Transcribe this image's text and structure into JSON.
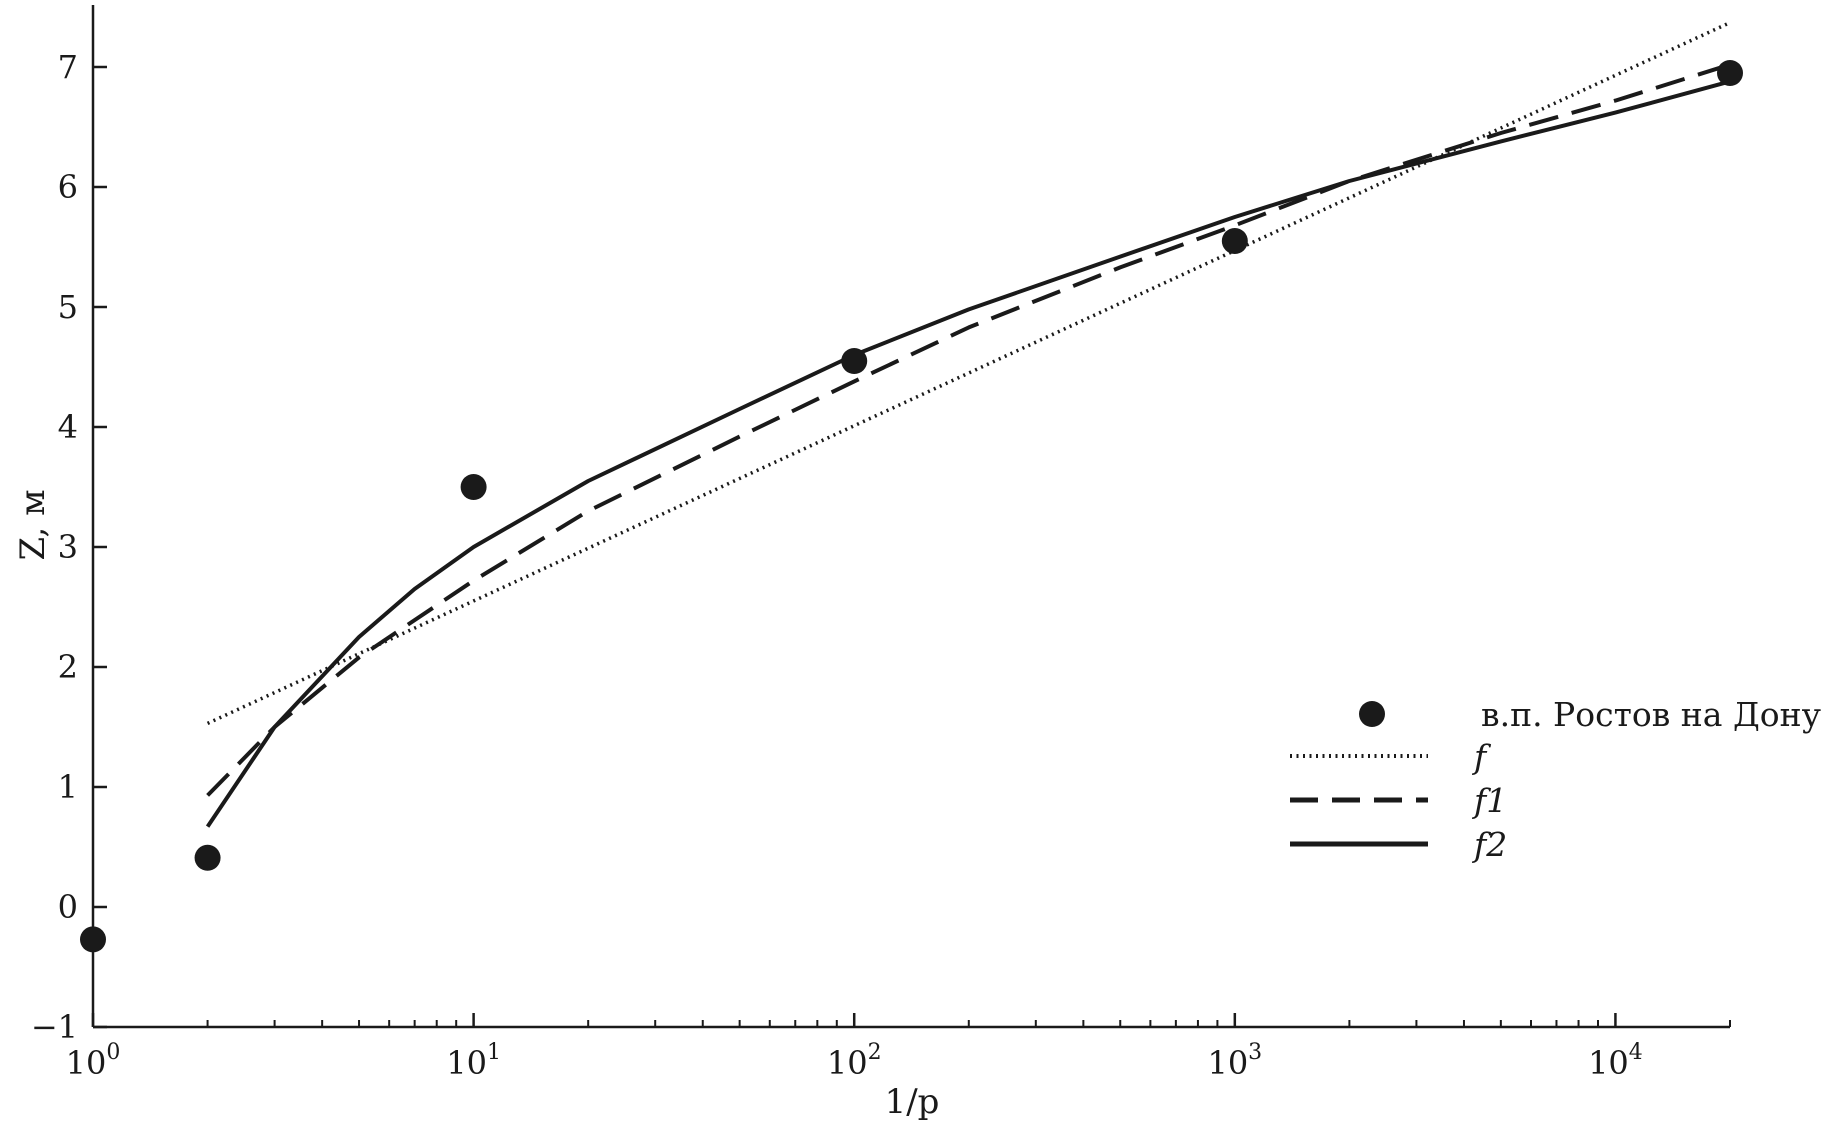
{
  "chart_data": {
    "type": "line",
    "title": "",
    "xlabel": "1/p",
    "ylabel": "Z, м",
    "x_scale": "log",
    "xlim": [
      1,
      20000
    ],
    "ylim": [
      -1,
      7.5
    ],
    "x_ticks": [
      {
        "value": 1,
        "base": "10",
        "exp": "0"
      },
      {
        "value": 10,
        "base": "10",
        "exp": "1"
      },
      {
        "value": 100,
        "base": "10",
        "exp": "2"
      },
      {
        "value": 1000,
        "base": "10",
        "exp": "3"
      },
      {
        "value": 10000,
        "base": "10",
        "exp": "4"
      }
    ],
    "y_ticks": [
      {
        "value": -1,
        "label": "−1"
      },
      {
        "value": 0,
        "label": "0"
      },
      {
        "value": 1,
        "label": "1"
      },
      {
        "value": 2,
        "label": "2"
      },
      {
        "value": 3,
        "label": "3"
      },
      {
        "value": 4,
        "label": "4"
      },
      {
        "value": 5,
        "label": "5"
      },
      {
        "value": 6,
        "label": "6"
      },
      {
        "value": 7,
        "label": "7"
      }
    ],
    "grid": false,
    "legend_position": "right",
    "series": [
      {
        "name": "в.п. Ростов на Дону",
        "kind": "scatter",
        "color": "#1a1a1a",
        "x": [
          1,
          2,
          10,
          100,
          1000,
          20000
        ],
        "y": [
          -0.27,
          0.41,
          3.5,
          4.55,
          5.55,
          6.95
        ]
      },
      {
        "name": "f",
        "kind": "line",
        "style": "dotted",
        "color": "#1a1a1a",
        "x": [
          2,
          20000
        ],
        "y": [
          1.53,
          7.37
        ]
      },
      {
        "name": "f1",
        "kind": "line",
        "style": "dashed",
        "color": "#1a1a1a",
        "x": [
          2,
          3,
          5,
          10,
          20,
          50,
          100,
          200,
          500,
          1000,
          2000,
          5000,
          10000,
          20000
        ],
        "y": [
          0.93,
          1.5,
          2.08,
          2.72,
          3.3,
          3.92,
          4.38,
          4.83,
          5.33,
          5.68,
          6.05,
          6.45,
          6.72,
          7.02
        ]
      },
      {
        "name": "f2",
        "kind": "line",
        "style": "solid",
        "color": "#1a1a1a",
        "x": [
          2,
          3,
          5,
          7,
          10,
          20,
          50,
          100,
          200,
          500,
          1000,
          2000,
          5000,
          10000,
          20000
        ],
        "y": [
          0.67,
          1.5,
          2.25,
          2.65,
          3.0,
          3.55,
          4.15,
          4.6,
          4.98,
          5.42,
          5.75,
          6.05,
          6.38,
          6.62,
          6.88
        ]
      }
    ]
  }
}
